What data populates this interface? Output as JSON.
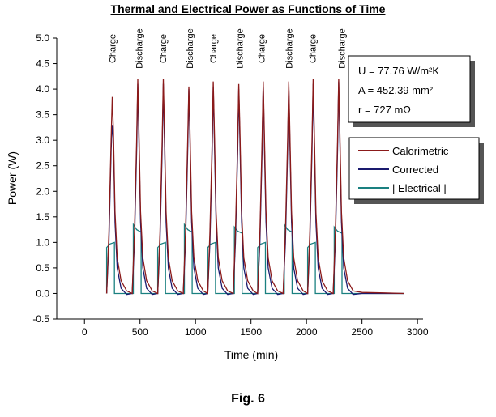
{
  "chart_data": {
    "type": "line",
    "title": "Thermal and Electrical Power as Functions of Time",
    "x_label": "Time (min)",
    "y_label": "Power (W)",
    "caption": "Fig. 6",
    "xlim": [
      -250,
      3050
    ],
    "ylim": [
      -0.5,
      5.0
    ],
    "xticks": [
      0,
      500,
      1000,
      1500,
      2000,
      2500,
      3000
    ],
    "yticks": [
      -0.5,
      {
        "value": 0,
        "label": "0.0"
      },
      0.5,
      {
        "value": 1,
        "label": "1.0"
      },
      1.5,
      {
        "value": 2,
        "label": "2.0"
      },
      2.5,
      {
        "value": 3,
        "label": "3.0"
      },
      3.5,
      {
        "value": 4,
        "label": "4.0"
      },
      4.5,
      {
        "value": 5,
        "label": "5.0"
      }
    ],
    "annotations": [
      {
        "text": "Charge",
        "x": 250
      },
      {
        "text": "Discharge",
        "x": 490
      },
      {
        "text": "Charge",
        "x": 706
      },
      {
        "text": "Discharge",
        "x": 947
      },
      {
        "text": "Charge",
        "x": 1158
      },
      {
        "text": "Discharge",
        "x": 1398
      },
      {
        "text": "Charge",
        "x": 1595
      },
      {
        "text": "Discharge",
        "x": 1842
      },
      {
        "text": "Charge",
        "x": 2054
      },
      {
        "text": "Discharge",
        "x": 2316
      }
    ],
    "info_box": [
      "U = 77.76 W/m²K",
      "A = 452.39 mm²",
      "r = 727 mΩ"
    ],
    "series": [
      {
        "name": "Calorimetric",
        "color": "#8b1a1a",
        "x": [
          200,
          220,
          240,
          250,
          260,
          275,
          295,
          330,
          380,
          430,
          450,
          470,
          480,
          490,
          505,
          525,
          560,
          610,
          660,
          680,
          700,
          710,
          720,
          735,
          755,
          790,
          840,
          890,
          910,
          930,
          940,
          950,
          965,
          985,
          1020,
          1070,
          1110,
          1130,
          1150,
          1160,
          1170,
          1185,
          1205,
          1240,
          1290,
          1340,
          1360,
          1380,
          1390,
          1400,
          1415,
          1435,
          1470,
          1520,
          1560,
          1580,
          1600,
          1610,
          1620,
          1635,
          1655,
          1690,
          1740,
          1790,
          1810,
          1830,
          1840,
          1850,
          1865,
          1885,
          1920,
          1970,
          2010,
          2030,
          2050,
          2060,
          2070,
          2085,
          2105,
          2140,
          2190,
          2240,
          2260,
          2280,
          2290,
          2300,
          2315,
          2335,
          2370,
          2420,
          2500,
          2700,
          2880
        ],
        "values": [
          0,
          1.2,
          3.0,
          3.85,
          3.2,
          1.6,
          0.7,
          0.25,
          0.05,
          0,
          1.2,
          3.0,
          4.2,
          3.2,
          1.6,
          0.7,
          0.25,
          0.05,
          0,
          1.2,
          3.0,
          4.2,
          3.2,
          1.6,
          0.7,
          0.25,
          0.05,
          0,
          1.2,
          3.0,
          4.05,
          3.2,
          1.6,
          0.7,
          0.25,
          0.05,
          0,
          1.2,
          3.0,
          4.15,
          3.2,
          1.6,
          0.7,
          0.25,
          0.05,
          0,
          1.2,
          3.0,
          4.1,
          3.2,
          1.6,
          0.7,
          0.25,
          0.05,
          0,
          1.2,
          3.0,
          4.15,
          3.2,
          1.6,
          0.7,
          0.25,
          0.05,
          0,
          1.2,
          3.0,
          4.15,
          3.2,
          1.6,
          0.7,
          0.25,
          0.05,
          0,
          1.2,
          3.0,
          4.2,
          3.2,
          1.6,
          0.7,
          0.25,
          0.05,
          0,
          1.2,
          3.0,
          4.2,
          3.2,
          1.6,
          0.7,
          0.25,
          0.05,
          0.02,
          0.01,
          0
        ]
      },
      {
        "name": "Corrected",
        "color": "#1a1a6e",
        "x": [
          200,
          220,
          240,
          250,
          260,
          275,
          295,
          330,
          380,
          430,
          450,
          470,
          480,
          490,
          505,
          525,
          560,
          610,
          660,
          680,
          700,
          710,
          720,
          735,
          755,
          790,
          840,
          890,
          910,
          930,
          940,
          950,
          965,
          985,
          1020,
          1070,
          1110,
          1130,
          1150,
          1160,
          1170,
          1185,
          1205,
          1240,
          1290,
          1340,
          1360,
          1380,
          1390,
          1400,
          1415,
          1435,
          1470,
          1520,
          1560,
          1580,
          1600,
          1610,
          1620,
          1635,
          1655,
          1690,
          1740,
          1790,
          1810,
          1830,
          1840,
          1850,
          1865,
          1885,
          1920,
          1970,
          2010,
          2030,
          2050,
          2060,
          2070,
          2085,
          2105,
          2140,
          2190,
          2240,
          2260,
          2280,
          2290,
          2300,
          2315,
          2335,
          2370,
          2420,
          2500,
          2700,
          2880
        ],
        "values": [
          0,
          1.0,
          2.8,
          3.3,
          3.0,
          1.4,
          0.5,
          0.1,
          -0.02,
          0,
          1.0,
          2.8,
          4.1,
          3.0,
          1.4,
          0.5,
          0.1,
          -0.02,
          0,
          1.0,
          2.8,
          4.1,
          3.0,
          1.4,
          0.5,
          0.1,
          -0.02,
          0,
          1.0,
          2.8,
          4.0,
          3.0,
          1.4,
          0.5,
          0.1,
          -0.02,
          0,
          1.0,
          2.8,
          4.05,
          3.0,
          1.4,
          0.5,
          0.1,
          -0.02,
          0,
          1.0,
          2.8,
          4.0,
          3.0,
          1.4,
          0.5,
          0.1,
          -0.02,
          0,
          1.0,
          2.8,
          4.1,
          3.0,
          1.4,
          0.5,
          0.1,
          -0.02,
          0,
          1.0,
          2.8,
          4.05,
          3.0,
          1.4,
          0.5,
          0.1,
          -0.02,
          0,
          1.0,
          2.8,
          4.1,
          3.0,
          1.4,
          0.5,
          0.1,
          -0.02,
          0,
          1.0,
          2.8,
          4.15,
          3.0,
          1.4,
          0.5,
          0.1,
          -0.02,
          0,
          0,
          0
        ]
      },
      {
        "name": "| Electrical |",
        "color": "#1a8080",
        "x": [
          200,
          200,
          230,
          270,
          270,
          440,
          440,
          470,
          510,
          510,
          660,
          660,
          690,
          730,
          730,
          900,
          900,
          930,
          970,
          970,
          1110,
          1110,
          1140,
          1180,
          1180,
          1350,
          1350,
          1380,
          1420,
          1420,
          1560,
          1560,
          1590,
          1630,
          1630,
          1800,
          1800,
          1830,
          1870,
          1870,
          2010,
          2010,
          2040,
          2080,
          2080,
          2250,
          2250,
          2280,
          2320,
          2320,
          2880
        ],
        "values": [
          0,
          0.9,
          0.97,
          1.0,
          0,
          0,
          1.35,
          1.25,
          1.2,
          0,
          0,
          0.9,
          0.97,
          1.0,
          0,
          0,
          1.35,
          1.25,
          1.2,
          0,
          0,
          0.9,
          0.97,
          1.0,
          0,
          0,
          1.3,
          1.22,
          1.18,
          0,
          0,
          0.9,
          0.97,
          1.0,
          0,
          0,
          1.35,
          1.25,
          1.2,
          0,
          0,
          0.9,
          0.97,
          1.0,
          0,
          0,
          1.3,
          1.22,
          1.18,
          0,
          0
        ]
      }
    ]
  }
}
